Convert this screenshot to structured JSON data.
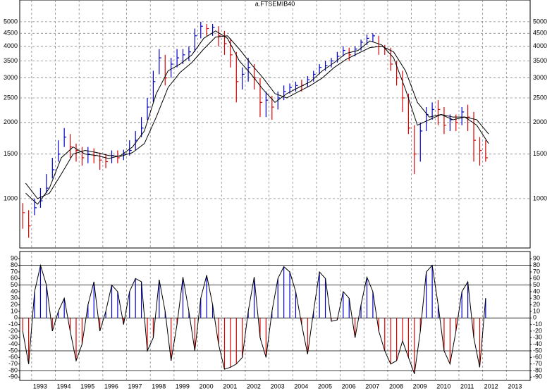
{
  "chart_data": [
    {
      "type": "ohlc",
      "title": "a.FTSEMIB40",
      "log_scale": true,
      "grid": true,
      "up_color": "#0000cc",
      "down_color": "#dd0000",
      "ylim": [
        638,
        5790
      ],
      "yticks": [
        1000,
        1500,
        2000,
        2500,
        3000,
        3500,
        4000,
        4500,
        5000
      ],
      "xlim": [
        1992.5,
        2014
      ],
      "xticks": [
        1993,
        1994,
        1995,
        1996,
        1997,
        1998,
        1999,
        2000,
        2001,
        2002,
        2003,
        2004,
        2005,
        2006,
        2007,
        2008,
        2009,
        2010,
        2011,
        2012,
        2013
      ],
      "x": [
        1992.625,
        1992.875,
        1993.125,
        1993.375,
        1993.625,
        1993.875,
        1994.125,
        1994.375,
        1994.625,
        1994.875,
        1995.125,
        1995.375,
        1995.625,
        1995.875,
        1996.125,
        1996.375,
        1996.625,
        1996.875,
        1997.125,
        1997.375,
        1997.625,
        1997.875,
        1998.125,
        1998.375,
        1998.625,
        1998.875,
        1999.125,
        1999.375,
        1999.625,
        1999.875,
        2000.125,
        2000.375,
        2000.625,
        2000.875,
        2001.125,
        2001.375,
        2001.625,
        2001.875,
        2002.125,
        2002.375,
        2002.625,
        2002.875,
        2003.125,
        2003.375,
        2003.625,
        2003.875,
        2004.125,
        2004.375,
        2004.625,
        2004.875,
        2005.125,
        2005.375,
        2005.625,
        2005.875,
        2006.125,
        2006.375,
        2006.625,
        2006.875,
        2007.125,
        2007.375,
        2007.625,
        2007.875,
        2008.125,
        2008.375,
        2008.625,
        2008.875,
        2009.125,
        2009.375,
        2009.625,
        2009.875,
        2010.125,
        2010.375,
        2010.625,
        2010.875,
        2011.125,
        2011.375,
        2011.625,
        2011.875,
        2012.125
      ],
      "close": [
        880,
        780,
        920,
        980,
        1100,
        1300,
        1500,
        1750,
        1600,
        1550,
        1450,
        1500,
        1480,
        1420,
        1400,
        1480,
        1450,
        1500,
        1550,
        1700,
        1900,
        2300,
        2900,
        3600,
        3000,
        3400,
        3600,
        3700,
        3800,
        4400,
        4800,
        4700,
        4750,
        4400,
        4100,
        3700,
        2900,
        3100,
        3300,
        3000,
        2400,
        2450,
        2300,
        2500,
        2650,
        2750,
        2800,
        2800,
        2950,
        3100,
        3300,
        3350,
        3500,
        3650,
        3850,
        3700,
        3900,
        4150,
        4300,
        4400,
        4000,
        3900,
        3400,
        3000,
        2500,
        1900,
        1500,
        1850,
        2150,
        2250,
        2250,
        1950,
        2050,
        2000,
        2200,
        2100,
        1700,
        1550,
        1450
      ],
      "high": [
        960,
        900,
        1000,
        1100,
        1250,
        1450,
        1700,
        1900,
        1800,
        1650,
        1600,
        1600,
        1580,
        1520,
        1500,
        1550,
        1550,
        1560,
        1700,
        1850,
        2100,
        2500,
        3200,
        3900,
        3700,
        3600,
        3900,
        3900,
        4000,
        4700,
        5000,
        4900,
        4900,
        4800,
        4600,
        4300,
        3800,
        3300,
        3600,
        3400,
        3000,
        2650,
        2550,
        2650,
        2800,
        2850,
        2900,
        2950,
        3050,
        3200,
        3400,
        3500,
        3600,
        3800,
        4000,
        3950,
        4000,
        4250,
        4450,
        4500,
        4400,
        4050,
        3950,
        3500,
        3200,
        2600,
        1950,
        2000,
        2300,
        2400,
        2450,
        2300,
        2150,
        2150,
        2300,
        2350,
        2200,
        1750,
        1700
      ],
      "low": [
        760,
        700,
        860,
        920,
        1050,
        1200,
        1400,
        1600,
        1450,
        1400,
        1350,
        1380,
        1380,
        1300,
        1320,
        1380,
        1380,
        1420,
        1480,
        1550,
        1750,
        2050,
        2400,
        3100,
        2800,
        3000,
        3300,
        3400,
        3500,
        3800,
        4300,
        4400,
        4400,
        4000,
        3700,
        3300,
        2400,
        2700,
        2900,
        2700,
        2100,
        2100,
        2050,
        2250,
        2450,
        2600,
        2650,
        2650,
        2750,
        2900,
        3100,
        3200,
        3300,
        3450,
        3650,
        3500,
        3650,
        3850,
        4050,
        4150,
        3700,
        3700,
        3200,
        2800,
        2200,
        1800,
        1250,
        1400,
        1850,
        2050,
        1950,
        1800,
        1850,
        1850,
        1950,
        1850,
        1400,
        1350,
        1400
      ],
      "moving_averages": [
        {
          "color": "#000000",
          "x": [
            1992.75,
            1993.25,
            1993.75,
            1994.25,
            1994.75,
            1995.25,
            1995.75,
            1996.25,
            1996.75,
            1997.25,
            1997.75,
            1998.25,
            1998.75,
            1999.25,
            1999.75,
            2000.25,
            2000.75,
            2001.25,
            2001.75,
            2002.25,
            2002.75,
            2003.25,
            2003.75,
            2004.25,
            2004.75,
            2005.25,
            2005.75,
            2006.25,
            2006.75,
            2007.25,
            2007.75,
            2008.25,
            2008.75,
            2009.25,
            2009.75,
            2010.25,
            2010.75,
            2011.25,
            2011.75,
            2012.25
          ],
          "values": [
            1050,
            950,
            1100,
            1450,
            1600,
            1500,
            1480,
            1440,
            1480,
            1600,
            1850,
            2600,
            3200,
            3400,
            3700,
            4300,
            4600,
            4300,
            3500,
            3100,
            2700,
            2400,
            2600,
            2750,
            2900,
            3200,
            3450,
            3750,
            3850,
            4200,
            4050,
            3600,
            2700,
            1950,
            2050,
            2150,
            2050,
            2100,
            1950,
            1650
          ]
        },
        {
          "color": "#000000",
          "x": [
            1992.75,
            1993.25,
            1993.75,
            1994.25,
            1994.75,
            1995.25,
            1995.75,
            1996.25,
            1996.75,
            1997.25,
            1997.75,
            1998.25,
            1998.75,
            1999.25,
            1999.75,
            2000.25,
            2000.75,
            2001.25,
            2001.75,
            2002.25,
            2002.75,
            2003.25,
            2003.75,
            2004.25,
            2004.75,
            2005.25,
            2005.75,
            2006.25,
            2006.75,
            2007.25,
            2007.75,
            2008.25,
            2008.75,
            2009.25,
            2009.75,
            2010.25,
            2010.75,
            2011.25,
            2011.75,
            2012.25
          ],
          "values": [
            1150,
            1000,
            1050,
            1250,
            1500,
            1550,
            1520,
            1480,
            1470,
            1520,
            1650,
            2100,
            2750,
            3150,
            3450,
            3900,
            4350,
            4400,
            3900,
            3400,
            3000,
            2600,
            2500,
            2650,
            2800,
            3000,
            3300,
            3550,
            3750,
            3950,
            4000,
            3800,
            3200,
            2400,
            2100,
            2150,
            2100,
            2100,
            2050,
            1800
          ]
        }
      ]
    },
    {
      "type": "oscillator",
      "up_color": "#0000cc",
      "down_color": "#dd0000",
      "line_color": "#000000",
      "ylim": [
        -95,
        101
      ],
      "yticks": [
        90,
        80,
        70,
        60,
        50,
        40,
        30,
        20,
        10,
        0,
        -10,
        -20,
        -30,
        -40,
        -50,
        -60,
        -70,
        -80,
        -90
      ],
      "reference_lines": [
        80,
        50,
        0,
        -50,
        -80
      ],
      "values": [
        -20,
        -70,
        40,
        80,
        50,
        -20,
        10,
        30,
        -20,
        -65,
        -40,
        20,
        55,
        -20,
        10,
        50,
        40,
        -10,
        40,
        60,
        55,
        -50,
        -30,
        58,
        10,
        -65,
        -10,
        62,
        10,
        -50,
        30,
        65,
        20,
        -40,
        -78,
        -75,
        -70,
        -60,
        10,
        62,
        -30,
        -60,
        10,
        60,
        78,
        70,
        40,
        -10,
        -55,
        10,
        70,
        60,
        -5,
        -3,
        40,
        30,
        -30,
        20,
        62,
        40,
        -20,
        -50,
        -70,
        -65,
        -35,
        -60,
        -85,
        -20,
        70,
        80,
        20,
        -50,
        -70,
        -20,
        40,
        55,
        -30,
        -75,
        30
      ]
    }
  ]
}
